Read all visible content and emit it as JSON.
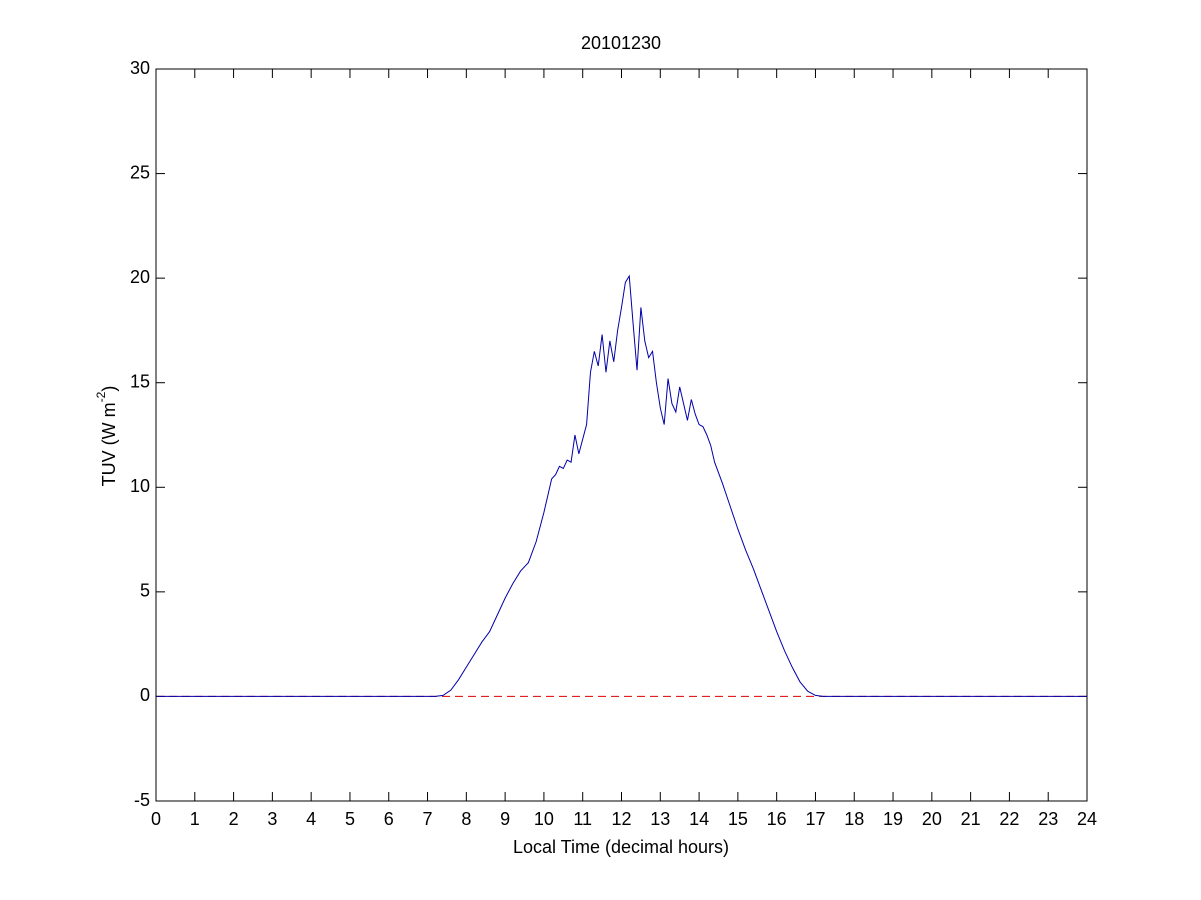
{
  "chart_data": {
    "type": "line",
    "title": "20101230",
    "xlabel": "Local Time (decimal hours)",
    "ylabel": "TUV (W m",
    "ylabel_superscript": "-2",
    "ylabel_end": ")",
    "xlim": [
      0,
      24
    ],
    "ylim": [
      -5,
      30
    ],
    "xticks": [
      0,
      1,
      2,
      3,
      4,
      5,
      6,
      7,
      8,
      9,
      10,
      11,
      12,
      13,
      14,
      15,
      16,
      17,
      18,
      19,
      20,
      21,
      22,
      23,
      24
    ],
    "yticks": [
      -5,
      0,
      5,
      10,
      15,
      20,
      25,
      30
    ],
    "grid": false,
    "series": [
      {
        "color": "#0000aa",
        "dash": false,
        "x": [
          0,
          7.2,
          7.4,
          7.6,
          7.8,
          8.0,
          8.2,
          8.4,
          8.6,
          8.8,
          9.0,
          9.2,
          9.4,
          9.6,
          9.8,
          10.0,
          10.2,
          10.3,
          10.4,
          10.5,
          10.6,
          10.7,
          10.8,
          10.9,
          11.0,
          11.1,
          11.2,
          11.3,
          11.4,
          11.5,
          11.6,
          11.7,
          11.8,
          11.9,
          12.0,
          12.1,
          12.2,
          12.3,
          12.4,
          12.5,
          12.6,
          12.7,
          12.8,
          12.9,
          13.0,
          13.1,
          13.2,
          13.3,
          13.4,
          13.5,
          13.6,
          13.7,
          13.8,
          13.9,
          14.0,
          14.1,
          14.2,
          14.3,
          14.4,
          14.6,
          14.8,
          15.0,
          15.2,
          15.4,
          15.6,
          15.8,
          16.0,
          16.2,
          16.4,
          16.6,
          16.8,
          17.0,
          17.2,
          24
        ],
        "values": [
          0,
          0,
          0.05,
          0.3,
          0.8,
          1.4,
          2.0,
          2.6,
          3.1,
          3.9,
          4.7,
          5.4,
          6.0,
          6.4,
          7.4,
          8.8,
          10.4,
          10.6,
          11.0,
          10.9,
          11.3,
          11.2,
          12.5,
          11.6,
          12.3,
          13.0,
          15.5,
          16.5,
          15.8,
          17.3,
          15.5,
          17.0,
          16.0,
          17.5,
          18.6,
          19.8,
          20.1,
          17.8,
          15.6,
          18.6,
          17.0,
          16.2,
          16.5,
          15.0,
          13.8,
          13.0,
          15.2,
          14.0,
          13.6,
          14.8,
          14.0,
          13.2,
          14.2,
          13.5,
          13.0,
          12.9,
          12.5,
          12.0,
          11.2,
          10.2,
          9.1,
          8.0,
          7.0,
          6.1,
          5.1,
          4.1,
          3.1,
          2.2,
          1.4,
          0.7,
          0.25,
          0.05,
          0,
          0
        ]
      },
      {
        "color": "#dd0000",
        "dash": true,
        "x": [
          0,
          24
        ],
        "values": [
          0,
          0
        ]
      }
    ]
  }
}
